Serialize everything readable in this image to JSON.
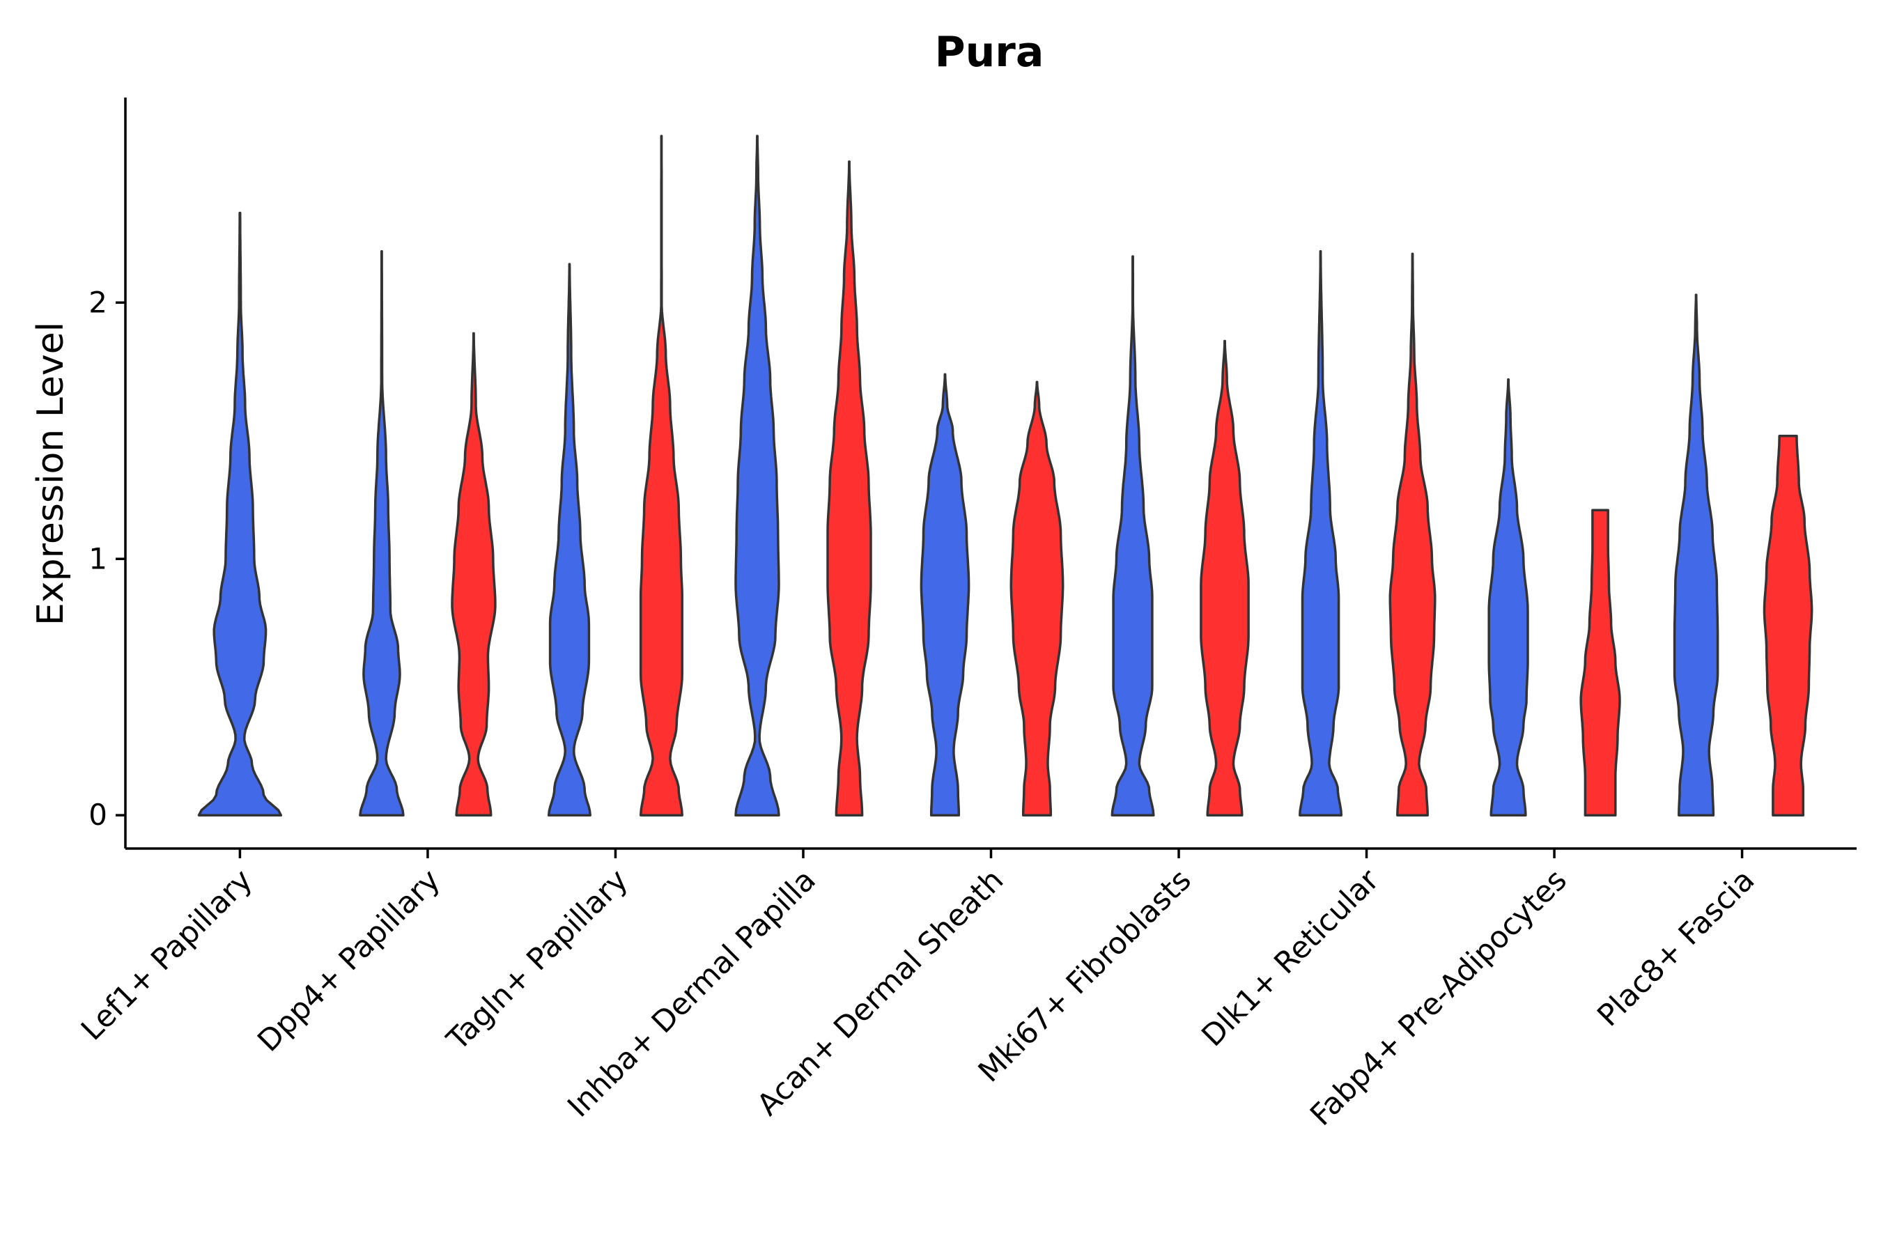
{
  "chart_data": {
    "type": "violin",
    "title": "Pura",
    "xlabel": "",
    "ylabel": "Expression Level",
    "ylim": [
      -0.13,
      2.8
    ],
    "yticks": [
      0,
      1,
      2
    ],
    "ytick_labels": [
      "0",
      "1",
      "2"
    ],
    "categories": [
      "Lef1+ Papillary",
      "Dpp4+ Papillary",
      "Tagln+ Papillary",
      "Inhba+ Dermal Papilla",
      "Acan+ Dermal Sheath",
      "Mki67+ Fibroblasts",
      "Dlk1+ Reticular",
      "Fabp4+ Pre-Adipocytes",
      "Plac8+ Fascia"
    ],
    "groups": [
      {
        "name": "group-1",
        "color": "#4169E8"
      },
      {
        "name": "group-2",
        "color": "#FF3030"
      }
    ],
    "violins": [
      {
        "category": 0,
        "group": 0,
        "max": 2.35,
        "density": [
          [
            0,
            0.95
          ],
          [
            0.08,
            0.55
          ],
          [
            0.2,
            0.28
          ],
          [
            0.3,
            0.1
          ],
          [
            0.45,
            0.35
          ],
          [
            0.6,
            0.55
          ],
          [
            0.72,
            0.6
          ],
          [
            0.85,
            0.45
          ],
          [
            1.0,
            0.33
          ],
          [
            1.2,
            0.3
          ],
          [
            1.4,
            0.22
          ],
          [
            1.6,
            0.12
          ],
          [
            1.8,
            0.06
          ],
          [
            2.0,
            0.02
          ],
          [
            2.35,
            0.005
          ]
        ]
      },
      {
        "category": 1,
        "group": 0,
        "max": 2.2,
        "density": [
          [
            0,
            0.5
          ],
          [
            0.1,
            0.35
          ],
          [
            0.22,
            0.1
          ],
          [
            0.4,
            0.3
          ],
          [
            0.55,
            0.42
          ],
          [
            0.65,
            0.38
          ],
          [
            0.8,
            0.2
          ],
          [
            1.0,
            0.18
          ],
          [
            1.2,
            0.15
          ],
          [
            1.4,
            0.1
          ],
          [
            1.7,
            0.01
          ],
          [
            2.2,
            0.003
          ]
        ]
      },
      {
        "category": 1,
        "group": 1,
        "max": 1.88,
        "density": [
          [
            0,
            0.4
          ],
          [
            0.1,
            0.32
          ],
          [
            0.22,
            0.1
          ],
          [
            0.35,
            0.3
          ],
          [
            0.5,
            0.35
          ],
          [
            0.62,
            0.33
          ],
          [
            0.82,
            0.5
          ],
          [
            1.0,
            0.45
          ],
          [
            1.2,
            0.35
          ],
          [
            1.4,
            0.2
          ],
          [
            1.6,
            0.05
          ],
          [
            1.88,
            0.003
          ]
        ]
      },
      {
        "category": 2,
        "group": 0,
        "max": 2.15,
        "density": [
          [
            0,
            0.48
          ],
          [
            0.1,
            0.35
          ],
          [
            0.25,
            0.1
          ],
          [
            0.4,
            0.3
          ],
          [
            0.6,
            0.45
          ],
          [
            0.75,
            0.45
          ],
          [
            0.9,
            0.35
          ],
          [
            1.1,
            0.25
          ],
          [
            1.3,
            0.18
          ],
          [
            1.5,
            0.1
          ],
          [
            1.8,
            0.04
          ],
          [
            2.15,
            0.003
          ]
        ]
      },
      {
        "category": 2,
        "group": 1,
        "max": 2.65,
        "density": [
          [
            0,
            0.48
          ],
          [
            0.1,
            0.4
          ],
          [
            0.22,
            0.2
          ],
          [
            0.35,
            0.35
          ],
          [
            0.55,
            0.48
          ],
          [
            0.65,
            0.48
          ],
          [
            0.85,
            0.48
          ],
          [
            1.0,
            0.45
          ],
          [
            1.2,
            0.4
          ],
          [
            1.4,
            0.28
          ],
          [
            1.6,
            0.2
          ],
          [
            1.8,
            0.1
          ],
          [
            2.0,
            0.005
          ],
          [
            2.65,
            0.003
          ]
        ]
      },
      {
        "category": 3,
        "group": 0,
        "max": 2.65,
        "density": [
          [
            0,
            0.5
          ],
          [
            0.15,
            0.3
          ],
          [
            0.3,
            0.05
          ],
          [
            0.5,
            0.2
          ],
          [
            0.7,
            0.42
          ],
          [
            0.9,
            0.5
          ],
          [
            1.1,
            0.48
          ],
          [
            1.3,
            0.45
          ],
          [
            1.5,
            0.38
          ],
          [
            1.7,
            0.3
          ],
          [
            1.9,
            0.2
          ],
          [
            2.1,
            0.12
          ],
          [
            2.3,
            0.06
          ],
          [
            2.5,
            0.02
          ],
          [
            2.65,
            0.003
          ]
        ]
      },
      {
        "category": 3,
        "group": 1,
        "max": 2.55,
        "density": [
          [
            0,
            0.3
          ],
          [
            0.15,
            0.25
          ],
          [
            0.3,
            0.18
          ],
          [
            0.5,
            0.3
          ],
          [
            0.7,
            0.45
          ],
          [
            0.9,
            0.5
          ],
          [
            1.1,
            0.5
          ],
          [
            1.3,
            0.45
          ],
          [
            1.5,
            0.35
          ],
          [
            1.7,
            0.25
          ],
          [
            1.9,
            0.18
          ],
          [
            2.1,
            0.12
          ],
          [
            2.3,
            0.05
          ],
          [
            2.55,
            0.003
          ]
        ]
      },
      {
        "category": 4,
        "group": 0,
        "max": 1.72,
        "density": [
          [
            0,
            0.32
          ],
          [
            0.1,
            0.3
          ],
          [
            0.25,
            0.2
          ],
          [
            0.4,
            0.3
          ],
          [
            0.55,
            0.42
          ],
          [
            0.7,
            0.5
          ],
          [
            0.9,
            0.55
          ],
          [
            1.1,
            0.5
          ],
          [
            1.3,
            0.38
          ],
          [
            1.5,
            0.18
          ],
          [
            1.6,
            0.05
          ],
          [
            1.72,
            0.003
          ]
        ]
      },
      {
        "category": 4,
        "group": 1,
        "max": 1.69,
        "density": [
          [
            0,
            0.32
          ],
          [
            0.1,
            0.3
          ],
          [
            0.2,
            0.25
          ],
          [
            0.35,
            0.3
          ],
          [
            0.5,
            0.42
          ],
          [
            0.7,
            0.55
          ],
          [
            0.9,
            0.6
          ],
          [
            1.1,
            0.55
          ],
          [
            1.3,
            0.4
          ],
          [
            1.45,
            0.22
          ],
          [
            1.6,
            0.05
          ],
          [
            1.69,
            0.003
          ]
        ]
      },
      {
        "category": 5,
        "group": 0,
        "max": 2.18,
        "density": [
          [
            0,
            0.48
          ],
          [
            0.1,
            0.38
          ],
          [
            0.2,
            0.15
          ],
          [
            0.35,
            0.3
          ],
          [
            0.5,
            0.45
          ],
          [
            0.65,
            0.45
          ],
          [
            0.85,
            0.45
          ],
          [
            1.0,
            0.38
          ],
          [
            1.2,
            0.25
          ],
          [
            1.45,
            0.15
          ],
          [
            1.7,
            0.06
          ],
          [
            2.0,
            0.005
          ],
          [
            2.18,
            0.003
          ]
        ]
      },
      {
        "category": 5,
        "group": 1,
        "max": 1.85,
        "density": [
          [
            0,
            0.4
          ],
          [
            0.1,
            0.35
          ],
          [
            0.2,
            0.2
          ],
          [
            0.35,
            0.35
          ],
          [
            0.5,
            0.45
          ],
          [
            0.7,
            0.55
          ],
          [
            0.9,
            0.55
          ],
          [
            1.1,
            0.45
          ],
          [
            1.3,
            0.35
          ],
          [
            1.5,
            0.2
          ],
          [
            1.7,
            0.05
          ],
          [
            1.85,
            0.003
          ]
        ]
      },
      {
        "category": 6,
        "group": 0,
        "max": 2.2,
        "density": [
          [
            0,
            0.48
          ],
          [
            0.1,
            0.4
          ],
          [
            0.2,
            0.2
          ],
          [
            0.35,
            0.3
          ],
          [
            0.5,
            0.42
          ],
          [
            0.65,
            0.42
          ],
          [
            0.85,
            0.42
          ],
          [
            1.0,
            0.35
          ],
          [
            1.2,
            0.22
          ],
          [
            1.45,
            0.15
          ],
          [
            1.7,
            0.05
          ],
          [
            2.2,
            0.003
          ]
        ]
      },
      {
        "category": 6,
        "group": 1,
        "max": 2.19,
        "density": [
          [
            0,
            0.35
          ],
          [
            0.1,
            0.32
          ],
          [
            0.2,
            0.15
          ],
          [
            0.35,
            0.3
          ],
          [
            0.5,
            0.42
          ],
          [
            0.7,
            0.5
          ],
          [
            0.85,
            0.52
          ],
          [
            1.0,
            0.45
          ],
          [
            1.2,
            0.35
          ],
          [
            1.4,
            0.18
          ],
          [
            1.6,
            0.1
          ],
          [
            1.8,
            0.04
          ],
          [
            2.0,
            0.01
          ],
          [
            2.19,
            0.003
          ]
        ]
      },
      {
        "category": 7,
        "group": 0,
        "max": 1.7,
        "density": [
          [
            0,
            0.4
          ],
          [
            0.1,
            0.35
          ],
          [
            0.2,
            0.2
          ],
          [
            0.35,
            0.35
          ],
          [
            0.45,
            0.42
          ],
          [
            0.6,
            0.45
          ],
          [
            0.8,
            0.45
          ],
          [
            1.0,
            0.35
          ],
          [
            1.2,
            0.2
          ],
          [
            1.4,
            0.08
          ],
          [
            1.55,
            0.05
          ],
          [
            1.7,
            0.003
          ]
        ]
      },
      {
        "category": 7,
        "group": 1,
        "max": 1.19,
        "density": [
          [
            0,
            0.35
          ],
          [
            0.15,
            0.35
          ],
          [
            0.3,
            0.4
          ],
          [
            0.45,
            0.45
          ],
          [
            0.6,
            0.35
          ],
          [
            0.75,
            0.25
          ],
          [
            0.9,
            0.2
          ],
          [
            1.05,
            0.18
          ],
          [
            1.19,
            0.18
          ]
        ]
      },
      {
        "category": 8,
        "group": 0,
        "max": 2.03,
        "density": [
          [
            0,
            0.4
          ],
          [
            0.1,
            0.38
          ],
          [
            0.25,
            0.3
          ],
          [
            0.4,
            0.4
          ],
          [
            0.55,
            0.5
          ],
          [
            0.7,
            0.5
          ],
          [
            0.9,
            0.48
          ],
          [
            1.1,
            0.38
          ],
          [
            1.3,
            0.25
          ],
          [
            1.5,
            0.15
          ],
          [
            1.7,
            0.08
          ],
          [
            1.9,
            0.02
          ],
          [
            2.03,
            0.003
          ]
        ]
      },
      {
        "category": 8,
        "group": 1,
        "max": 1.48,
        "density": [
          [
            0,
            0.35
          ],
          [
            0.1,
            0.35
          ],
          [
            0.2,
            0.3
          ],
          [
            0.35,
            0.4
          ],
          [
            0.5,
            0.48
          ],
          [
            0.65,
            0.5
          ],
          [
            0.8,
            0.55
          ],
          [
            0.95,
            0.5
          ],
          [
            1.15,
            0.38
          ],
          [
            1.3,
            0.25
          ],
          [
            1.48,
            0.2
          ]
        ]
      }
    ]
  }
}
